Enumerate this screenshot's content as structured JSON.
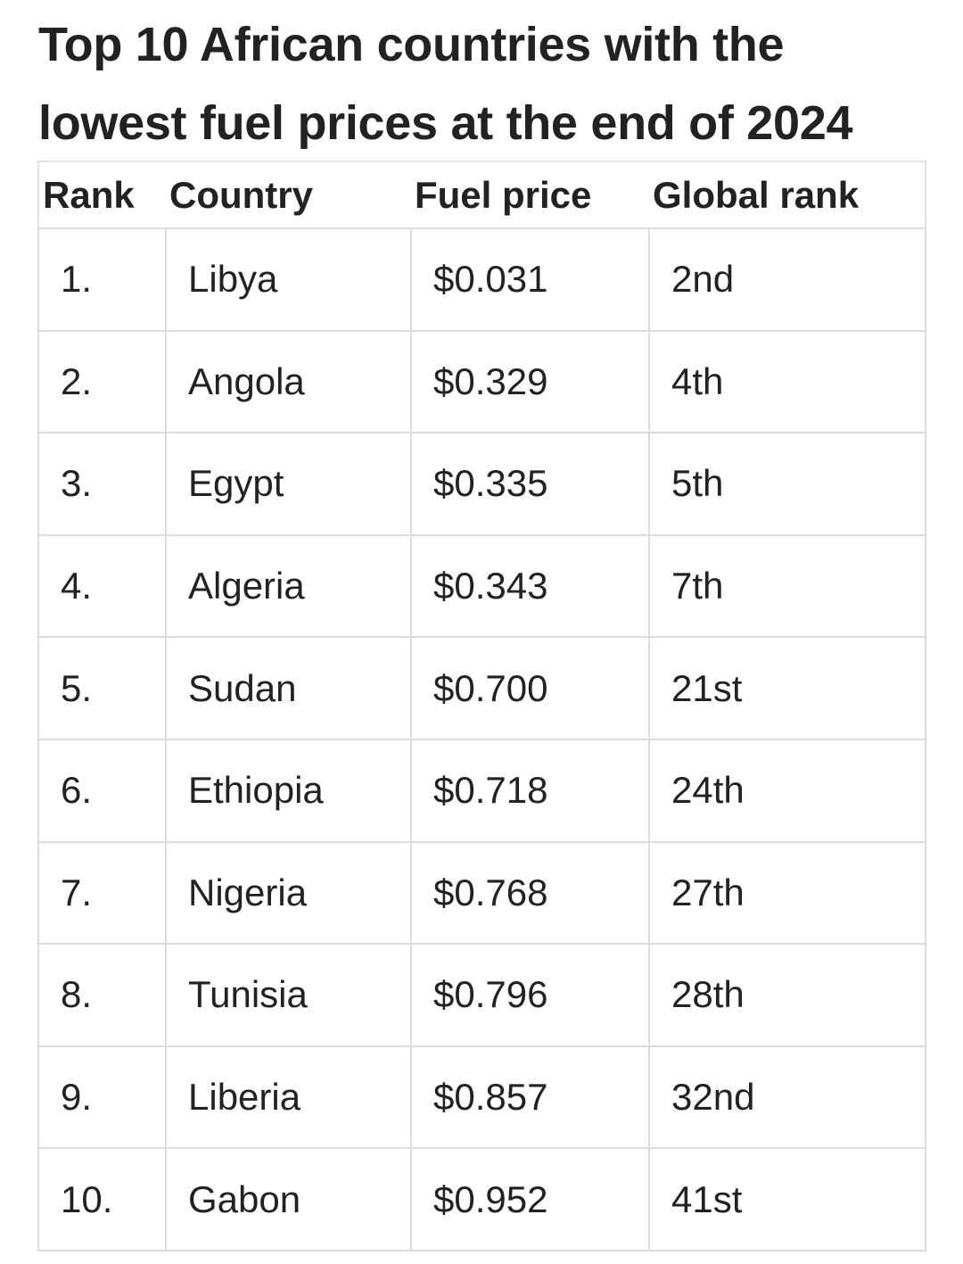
{
  "title": "Top 10 African countries with the lowest fuel prices at the end of 2024",
  "table": {
    "headers": [
      "Rank",
      "Country",
      "Fuel price",
      "Global rank"
    ],
    "rows": [
      [
        "1.",
        "Libya",
        "$0.031",
        "2nd"
      ],
      [
        "2.",
        "Angola",
        "$0.329",
        "4th"
      ],
      [
        "3.",
        "Egypt",
        "$0.335",
        "5th"
      ],
      [
        "4.",
        "Algeria",
        "$0.343",
        "7th"
      ],
      [
        "5.",
        "Sudan",
        "$0.700",
        "21st"
      ],
      [
        "6.",
        "Ethiopia",
        "$0.718",
        "24th"
      ],
      [
        "7.",
        "Nigeria",
        "$0.768",
        "27th"
      ],
      [
        "8.",
        "Tunisia",
        "$0.796",
        "28th"
      ],
      [
        "9.",
        "Liberia",
        "$0.857",
        "32nd"
      ],
      [
        "10.",
        "Gabon",
        "$0.952",
        "41st"
      ]
    ]
  },
  "chart_data": {
    "type": "table",
    "title": "Top 10 African countries with the lowest fuel prices at the end of 2024",
    "columns": [
      "Rank",
      "Country",
      "Fuel price",
      "Global rank"
    ],
    "rows": [
      [
        "1.",
        "Libya",
        "$0.031",
        "2nd"
      ],
      [
        "2.",
        "Angola",
        "$0.329",
        "4th"
      ],
      [
        "3.",
        "Egypt",
        "$0.335",
        "5th"
      ],
      [
        "4.",
        "Algeria",
        "$0.343",
        "7th"
      ],
      [
        "5.",
        "Sudan",
        "$0.700",
        "21st"
      ],
      [
        "6.",
        "Ethiopia",
        "$0.718",
        "24th"
      ],
      [
        "7.",
        "Nigeria",
        "$0.768",
        "27th"
      ],
      [
        "8.",
        "Tunisia",
        "$0.796",
        "28th"
      ],
      [
        "9.",
        "Liberia",
        "$0.857",
        "32nd"
      ],
      [
        "10.",
        "Gabon",
        "$0.952",
        "41st"
      ]
    ]
  }
}
